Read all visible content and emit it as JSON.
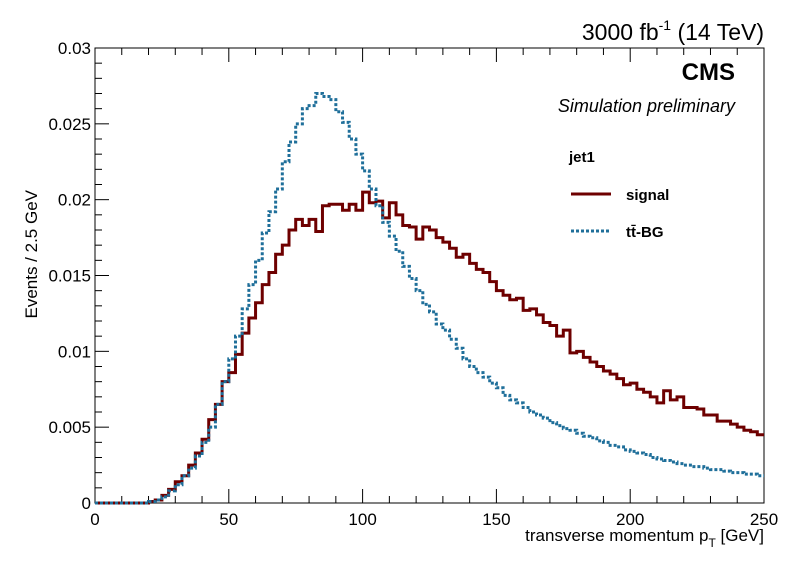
{
  "header": {
    "lumi_prefix": "3000 fb",
    "lumi_exp": "-1",
    "lumi_suffix": " (14 TeV)",
    "experiment": "CMS",
    "status": "Simulation preliminary"
  },
  "chart_data": {
    "type": "line",
    "title": "",
    "xlabel": "transverse momentum p",
    "xlabel_sub": "T",
    "xlabel_unit": " [GeV]",
    "ylabel": "Events / 2.5 GeV",
    "xlim": [
      0,
      250
    ],
    "ylim": [
      0,
      0.03
    ],
    "bin_width": 2.5,
    "x_ticks": [
      0,
      50,
      100,
      150,
      200,
      250
    ],
    "y_ticks": [
      0,
      0.005,
      0.01,
      0.015,
      0.02,
      0.025,
      0.03
    ],
    "y_tick_labels": [
      "0",
      "0.005",
      "0.01",
      "0.015",
      "0.02",
      "0.025",
      "0.03"
    ],
    "grid": false,
    "legend": {
      "title": "jet1",
      "position": "top-right"
    },
    "series": [
      {
        "name": "signal",
        "style": "solid",
        "color": "#6e0000",
        "values": [
          0,
          0,
          0,
          0,
          0,
          0,
          0,
          0,
          0.0001,
          0.0002,
          0.0005,
          0.0009,
          0.0014,
          0.0018,
          0.0025,
          0.0033,
          0.0042,
          0.0055,
          0.0065,
          0.008,
          0.0086,
          0.0098,
          0.0112,
          0.0122,
          0.0132,
          0.0144,
          0.0152,
          0.0164,
          0.017,
          0.018,
          0.0187,
          0.0183,
          0.0187,
          0.0179,
          0.0196,
          0.0197,
          0.0197,
          0.0193,
          0.0197,
          0.0193,
          0.0205,
          0.0198,
          0.0199,
          0.0188,
          0.0198,
          0.019,
          0.0183,
          0.0182,
          0.0174,
          0.0182,
          0.018,
          0.0175,
          0.0172,
          0.0168,
          0.0162,
          0.0164,
          0.0158,
          0.0154,
          0.0152,
          0.0146,
          0.014,
          0.0137,
          0.0134,
          0.0135,
          0.0127,
          0.0128,
          0.0124,
          0.0119,
          0.0117,
          0.011,
          0.0114,
          0.0099,
          0.01,
          0.0096,
          0.0093,
          0.009,
          0.0087,
          0.0085,
          0.0082,
          0.0078,
          0.0079,
          0.0075,
          0.0073,
          0.007,
          0.0066,
          0.0074,
          0.0068,
          0.007,
          0.0063,
          0.0063,
          0.0062,
          0.0058,
          0.0058,
          0.0054,
          0.0054,
          0.0052,
          0.005,
          0.0048,
          0.0047,
          0.0045
        ]
      },
      {
        "name": "tt̄-BG",
        "style": "dotted",
        "color": "#1f6f9a",
        "values": [
          0,
          0,
          0,
          0,
          0,
          0,
          0,
          0,
          0.0001,
          0.0002,
          0.0004,
          0.0008,
          0.0012,
          0.0018,
          0.0023,
          0.0031,
          0.004,
          0.005,
          0.0065,
          0.008,
          0.0095,
          0.011,
          0.0128,
          0.0144,
          0.016,
          0.0178,
          0.0192,
          0.0207,
          0.0225,
          0.0238,
          0.025,
          0.026,
          0.0262,
          0.027,
          0.0268,
          0.0266,
          0.0258,
          0.0251,
          0.024,
          0.023,
          0.0219,
          0.0207,
          0.0196,
          0.0185,
          0.0176,
          0.0166,
          0.0156,
          0.0148,
          0.014,
          0.0131,
          0.0126,
          0.0118,
          0.0114,
          0.0108,
          0.0102,
          0.0095,
          0.009,
          0.0086,
          0.0083,
          0.0079,
          0.0076,
          0.0071,
          0.0068,
          0.0066,
          0.0063,
          0.006,
          0.0058,
          0.0056,
          0.0053,
          0.0051,
          0.0049,
          0.0048,
          0.0046,
          0.0044,
          0.0043,
          0.0041,
          0.004,
          0.0038,
          0.0037,
          0.0035,
          0.0034,
          0.0033,
          0.0032,
          0.003,
          0.0029,
          0.0028,
          0.0027,
          0.0026,
          0.0025,
          0.0024,
          0.0024,
          0.0023,
          0.0022,
          0.0022,
          0.0021,
          0.002,
          0.002,
          0.0019,
          0.0019,
          0.0018
        ]
      }
    ]
  }
}
